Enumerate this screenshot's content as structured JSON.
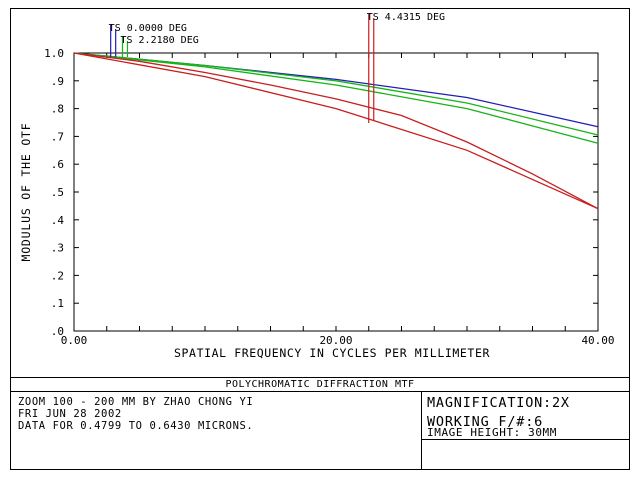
{
  "chart_data": {
    "type": "line",
    "xlabel": "SPATIAL FREQUENCY IN CYCLES PER MILLIMETER",
    "ylabel": "MODULUS OF THE OTF",
    "xlim": [
      0,
      40
    ],
    "ylim": [
      0,
      1.0
    ],
    "x_tick_labels": [
      {
        "value": 0,
        "label": "0.00"
      },
      {
        "value": 20,
        "label": "20.00"
      },
      {
        "value": 40,
        "label": "40.00"
      }
    ],
    "y_tick_labels": [
      {
        "value": 1.0,
        "label": "1.0"
      },
      {
        "value": 0.9,
        "label": ".9"
      },
      {
        "value": 0.8,
        "label": ".8"
      },
      {
        "value": 0.7,
        "label": ".7"
      },
      {
        "value": 0.6,
        "label": ".6"
      },
      {
        "value": 0.5,
        "label": ".5"
      },
      {
        "value": 0.4,
        "label": ".4"
      },
      {
        "value": 0.3,
        "label": ".3"
      },
      {
        "value": 0.2,
        "label": ".2"
      },
      {
        "value": 0.1,
        "label": ".1"
      },
      {
        "value": 0.0,
        "label": ".0"
      }
    ],
    "x_minor_ticks": [
      2.5,
      5,
      7.5,
      10,
      12.5,
      15,
      17.5,
      20,
      22.5,
      25,
      27.5,
      30,
      32.5,
      35,
      37.5
    ],
    "y_minor_ticks": [
      0.1,
      0.2,
      0.3,
      0.4,
      0.5,
      0.6,
      0.7,
      0.8,
      0.9
    ],
    "grid": false,
    "series": [
      {
        "color": "#1f1fb4",
        "x": [
          0,
          10,
          20,
          30,
          40
        ],
        "y": [
          1.0,
          0.955,
          0.905,
          0.84,
          0.735
        ]
      },
      {
        "color": "#17b417",
        "x": [
          0,
          10,
          20,
          30,
          40
        ],
        "y": [
          1.0,
          0.955,
          0.9,
          0.82,
          0.705
        ]
      },
      {
        "color": "#17b417",
        "x": [
          0,
          10,
          20,
          30,
          40
        ],
        "y": [
          1.0,
          0.95,
          0.885,
          0.8,
          0.675
        ]
      },
      {
        "color": "#c81e1e",
        "x": [
          0,
          5,
          10,
          15,
          20,
          25,
          30,
          35,
          40
        ],
        "y": [
          1.0,
          0.97,
          0.93,
          0.885,
          0.835,
          0.775,
          0.68,
          0.565,
          0.44
        ]
      },
      {
        "color": "#c81e1e",
        "x": [
          0,
          10,
          20,
          30,
          40
        ],
        "y": [
          1.0,
          0.915,
          0.8,
          0.65,
          0.44
        ]
      }
    ],
    "markers": [
      {
        "label": "TS 0.0000 DEG",
        "x": 2.8,
        "color": "#1f1fb4",
        "label_row": 0
      },
      {
        "label": "TS 2.2180 DEG",
        "x": 3.7,
        "color": "#17b417",
        "label_row": 1
      },
      {
        "label": "TS 4.4315 DEG",
        "x": 22.5,
        "color": "#c81e1e",
        "label_row": -1
      }
    ]
  },
  "footer": {
    "title": "POLYCHROMATIC DIFFRACTION MTF",
    "lines": [
      "ZOOM 100 - 200 MM BY ZHAO CHONG YI",
      "FRI JUN 28 2002",
      "DATA FOR 0.4799 TO 0.6430 MICRONS."
    ],
    "magnification": "MAGNIFICATION:2X",
    "working_fnum": "WORKING F/#:6",
    "image_height": "IMAGE HEIGHT: 30MM"
  }
}
